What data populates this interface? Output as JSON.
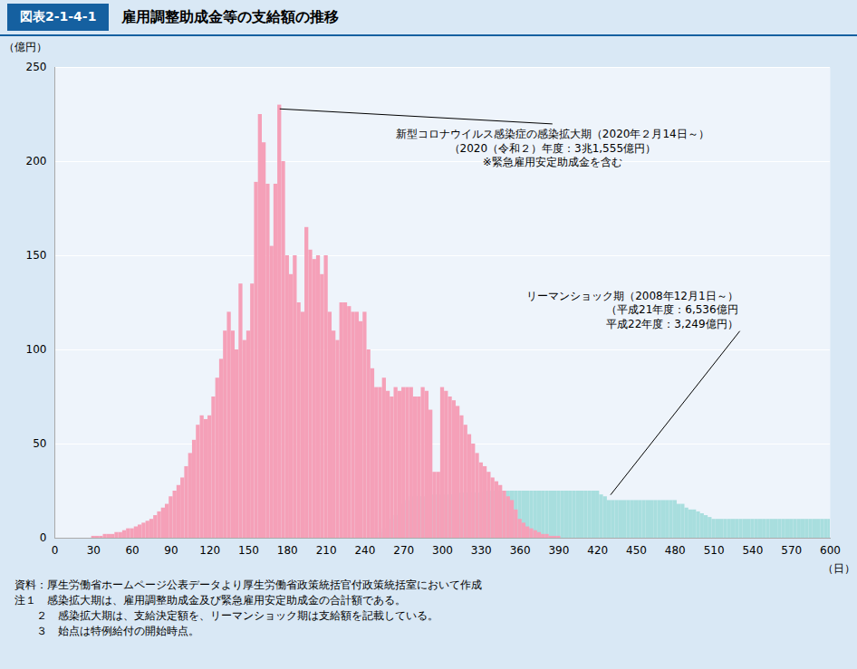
{
  "chart_data": {
    "type": "bar",
    "title": "雇用調整助成金等の支給額の推移",
    "subtitle": "図表2-1-4-1",
    "xlabel": "（日）",
    "ylabel": "（億円）",
    "xlim": [
      0,
      600
    ],
    "ylim": [
      0,
      250
    ],
    "xticks": [
      0,
      30,
      60,
      90,
      120,
      150,
      180,
      210,
      240,
      270,
      300,
      330,
      360,
      390,
      420,
      450,
      480,
      510,
      540,
      570,
      600
    ],
    "yticks": [
      0,
      50,
      100,
      150,
      200,
      250
    ],
    "grid": true,
    "series": [
      {
        "color": "#a8dede",
        "x": [
          3,
          6,
          9,
          12,
          15,
          18,
          21,
          24,
          27,
          30,
          33,
          36,
          39,
          42,
          45,
          48,
          51,
          54,
          57,
          60,
          63,
          66,
          69,
          72,
          75,
          78,
          81,
          84,
          87,
          90,
          93,
          96,
          99,
          102,
          105,
          108,
          111,
          114,
          117,
          120,
          123,
          126,
          129,
          132,
          135,
          138,
          141,
          144,
          147,
          150,
          153,
          156,
          159,
          162,
          165,
          168,
          171,
          174,
          177,
          180,
          183,
          186,
          189,
          192,
          195,
          198,
          201,
          204,
          207,
          210,
          213,
          216,
          219,
          222,
          225,
          228,
          231,
          234,
          237,
          240,
          243,
          246,
          249,
          252,
          255,
          258,
          261,
          264,
          267,
          270,
          273,
          276,
          279,
          282,
          285,
          288,
          291,
          294,
          297,
          300,
          303,
          306,
          309,
          312,
          315,
          318,
          321,
          324,
          327,
          330,
          333,
          336,
          339,
          342,
          345,
          348,
          351,
          354,
          357,
          360,
          363,
          366,
          369,
          372,
          375,
          378,
          381,
          384,
          387,
          390,
          393,
          396,
          399,
          402,
          405,
          408,
          411,
          414,
          417,
          420,
          423,
          426,
          429,
          432,
          435,
          438,
          441,
          444,
          447,
          450,
          453,
          456,
          459,
          462,
          465,
          468,
          471,
          474,
          477,
          480,
          483,
          486,
          489,
          492,
          495,
          498,
          501,
          504,
          507,
          510,
          513,
          516,
          519,
          522,
          525,
          528,
          531,
          534,
          537,
          540,
          543,
          546,
          549,
          552,
          555,
          558,
          561,
          564,
          567,
          570,
          573,
          576,
          579,
          582,
          585,
          588,
          591,
          594,
          597,
          600
        ],
        "values": [
          0,
          0,
          0,
          0,
          0,
          0,
          0,
          0,
          0,
          0,
          0,
          0,
          0,
          0,
          0,
          0,
          0,
          0,
          0,
          0,
          0,
          0,
          0,
          0,
          0,
          0,
          0,
          0,
          0,
          0,
          0,
          0,
          0,
          0,
          0,
          0,
          0,
          0,
          0,
          0,
          0,
          0,
          0,
          0,
          0,
          0,
          0,
          0,
          0,
          0,
          0,
          0,
          0,
          0,
          0,
          0,
          0,
          0,
          0,
          0,
          0,
          0,
          0,
          0,
          0,
          0,
          0,
          0,
          0,
          0,
          0,
          0,
          0,
          0,
          0,
          0,
          0,
          0,
          0,
          0,
          0,
          0,
          0,
          3,
          5,
          8,
          10,
          12,
          15,
          18,
          20,
          22,
          22,
          22,
          22,
          22,
          23,
          23,
          23,
          23,
          23,
          23,
          23,
          24,
          24,
          24,
          24,
          24,
          24,
          24,
          24,
          25,
          25,
          25,
          25,
          25,
          25,
          25,
          25,
          25,
          25,
          25,
          25,
          25,
          25,
          25,
          25,
          25,
          25,
          25,
          25,
          25,
          25,
          25,
          25,
          25,
          25,
          25,
          25,
          25,
          23,
          22,
          20,
          20,
          20,
          20,
          20,
          20,
          20,
          20,
          20,
          20,
          20,
          20,
          20,
          20,
          20,
          20,
          20,
          20,
          18,
          18,
          16,
          15,
          15,
          14,
          13,
          12,
          11,
          10,
          10,
          10,
          10,
          10,
          10,
          10,
          10,
          10,
          10,
          10,
          10,
          10,
          10,
          10,
          10,
          10,
          10,
          10,
          10,
          10,
          10,
          10,
          10,
          10,
          10,
          10,
          10,
          10,
          10,
          10
        ]
      },
      {
        "color": "#f5a0b8",
        "x": [
          3,
          6,
          9,
          12,
          15,
          18,
          21,
          24,
          27,
          30,
          33,
          36,
          39,
          42,
          45,
          48,
          51,
          54,
          57,
          60,
          63,
          66,
          69,
          72,
          75,
          78,
          81,
          84,
          87,
          90,
          93,
          96,
          99,
          102,
          105,
          108,
          111,
          114,
          117,
          120,
          123,
          126,
          129,
          132,
          135,
          138,
          141,
          144,
          147,
          150,
          153,
          156,
          159,
          162,
          165,
          168,
          171,
          174,
          177,
          180,
          183,
          186,
          189,
          192,
          195,
          198,
          201,
          204,
          207,
          210,
          213,
          216,
          219,
          222,
          225,
          228,
          231,
          234,
          237,
          240,
          243,
          246,
          249,
          252,
          255,
          258,
          261,
          264,
          267,
          270,
          273,
          276,
          279,
          282,
          285,
          288,
          291,
          294,
          297,
          300,
          303,
          306,
          309,
          312,
          315,
          318,
          321,
          324,
          327,
          330,
          333,
          336,
          339,
          342,
          345,
          348,
          351,
          354,
          357,
          360,
          363,
          366,
          369,
          372,
          375,
          378,
          381,
          384,
          387,
          390,
          393,
          396,
          399,
          402,
          405,
          408,
          411,
          414,
          417,
          420
        ],
        "values": [
          0,
          0,
          0,
          0,
          0,
          0,
          0,
          0,
          0,
          1,
          1,
          1,
          2,
          2,
          2,
          3,
          3,
          4,
          5,
          5,
          6,
          7,
          8,
          9,
          10,
          12,
          14,
          16,
          18,
          22,
          25,
          28,
          32,
          38,
          45,
          52,
          60,
          65,
          63,
          65,
          75,
          85,
          95,
          110,
          120,
          110,
          100,
          135,
          105,
          110,
          135,
          189,
          225,
          210,
          188,
          155,
          188,
          230,
          200,
          150,
          140,
          150,
          125,
          120,
          165,
          153,
          148,
          150,
          140,
          150,
          120,
          110,
          105,
          125,
          125,
          123,
          120,
          120,
          115,
          120,
          100,
          90,
          80,
          80,
          85,
          78,
          75,
          80,
          78,
          80,
          80,
          80,
          75,
          75,
          80,
          78,
          68,
          35,
          35,
          80,
          78,
          75,
          73,
          70,
          65,
          60,
          55,
          50,
          45,
          40,
          38,
          35,
          32,
          30,
          28,
          25,
          22,
          20,
          15,
          10,
          8,
          6,
          5,
          4,
          3,
          2,
          2,
          1,
          1,
          1,
          0,
          0,
          0,
          0,
          0,
          0,
          0,
          0,
          0,
          0
        ]
      }
    ],
    "annotations": [
      {
        "text": "新型コロナウイルス感染症の感染拡大期（2020年２月14日～）\n（2020（令和２）年度：3兆1,555億円）\n※緊急雇用安定助成金を含む",
        "x": 174,
        "y": 228,
        "text_x": 385,
        "text_y": 220
      },
      {
        "text": "リーマンショック期（2008年12月1日～）\n（平成21年度：6,536億円\n　平成22年度：3,249億円）",
        "x": 430,
        "y": 23,
        "text_x": 530,
        "text_y": 110
      }
    ],
    "caption": [
      "資料：厚生労働省ホームページ公表データより厚生労働省政策統括官付政策統括室において作成",
      "注１　感染拡大期は、雇用調整助成金及び緊急雇用安定助成金の合計額である。",
      "　　２　感染拡大期は、支給決定額を、リーマンショック期は支給額を記載している。",
      "　　３　始点は特例給付の開始時点。"
    ]
  }
}
